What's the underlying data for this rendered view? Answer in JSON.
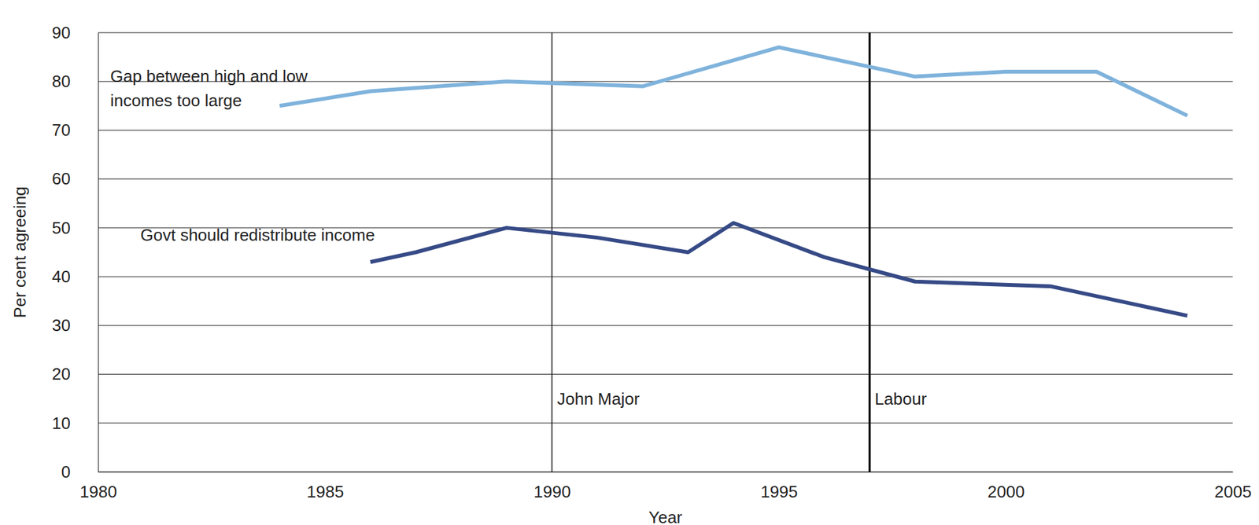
{
  "chart_data": {
    "type": "line",
    "x_label": "Year",
    "y_label": "Per cent agreeing",
    "xlim": [
      1980,
      2005
    ],
    "xticks": [
      1980,
      1985,
      1990,
      1995,
      2000,
      2005
    ],
    "ylim": [
      0,
      90
    ],
    "yticks": [
      0,
      10,
      20,
      30,
      40,
      50,
      60,
      70,
      80,
      90
    ],
    "grid": true,
    "series": [
      {
        "name": "Gap between high and low incomes too large",
        "color": "#7fb3dc",
        "x": [
          1984,
          1986,
          1989,
          1992,
          1995,
          1998,
          2000,
          2002,
          2004
        ],
        "values": [
          75,
          78,
          80,
          79,
          87,
          81,
          82,
          82,
          73
        ]
      },
      {
        "name": "Govt should redistribute income",
        "color": "#364a86",
        "x": [
          1986,
          1987,
          1989,
          1991,
          1993,
          1994,
          1996,
          1998,
          2001,
          2004
        ],
        "values": [
          43,
          45,
          50,
          48,
          45,
          51,
          44,
          39,
          38,
          32
        ]
      }
    ],
    "annotations": [
      {
        "x": 1990,
        "text": "John Major"
      },
      {
        "x": 1997,
        "text": "Labour"
      }
    ]
  }
}
